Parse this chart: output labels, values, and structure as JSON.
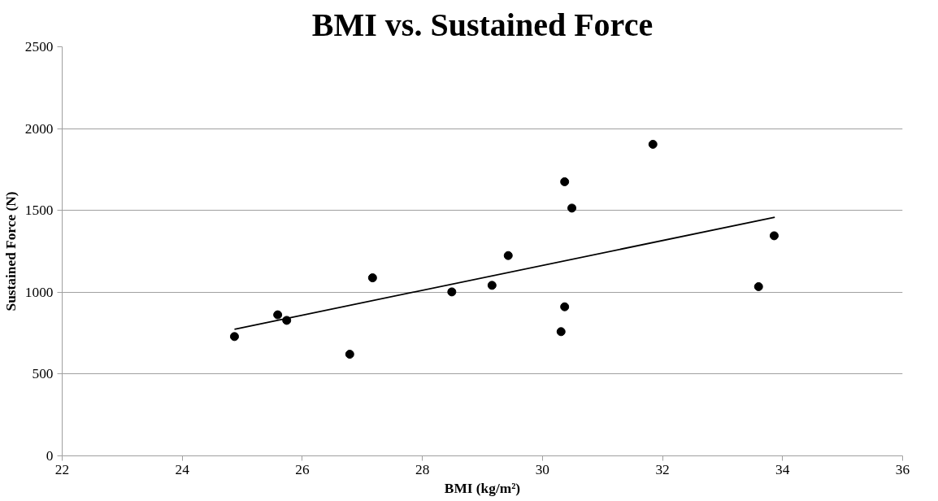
{
  "chart_data": {
    "type": "scatter",
    "title": "BMI vs. Sustained Force",
    "xlabel": "BMI (kg/m²)",
    "ylabel": "Sustained Force (N)",
    "xlim": [
      22,
      36
    ],
    "xticks": [
      22,
      24,
      26,
      28,
      30,
      32,
      34,
      36
    ],
    "ylim": [
      0,
      2500
    ],
    "yticks": [
      0,
      500,
      1000,
      1500,
      2000,
      2500
    ],
    "grid": "y",
    "series": [
      {
        "marker": "circle",
        "color": "#000000",
        "x": [
          24.87,
          25.59,
          25.74,
          26.79,
          27.17,
          28.49,
          29.16,
          29.43,
          30.37,
          30.49,
          30.37,
          30.31,
          31.84,
          33.6,
          33.86
        ],
        "values": [
          729,
          862,
          828,
          621,
          1088,
          1002,
          1042,
          1224,
          1675,
          1514,
          911,
          759,
          1904,
          1034,
          1345
        ]
      },
      {
        "type": "line",
        "color": "#000000",
        "line_style": "solid",
        "x": [
          24.87,
          33.87
        ],
        "values": [
          774,
          1458
        ]
      }
    ]
  }
}
